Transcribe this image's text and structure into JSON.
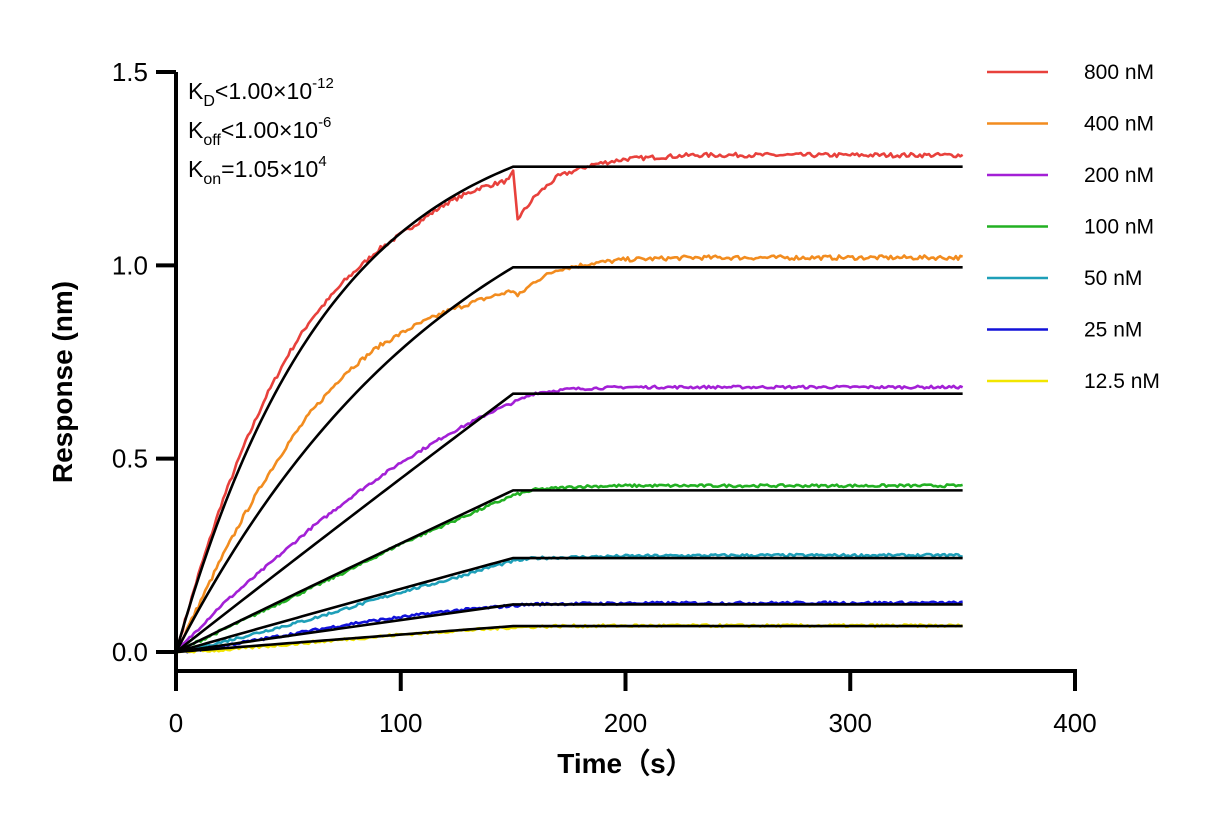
{
  "chart_data": {
    "type": "line",
    "title": "",
    "xlabel": "Time（s）",
    "ylabel": "Response (nm)",
    "xlim": [
      0,
      400
    ],
    "ylim": [
      0,
      1.5
    ],
    "x_ticks": [
      0,
      100,
      200,
      300,
      400
    ],
    "y_ticks": [
      0.0,
      0.5,
      1.0,
      1.5
    ],
    "x_tick_labels": [
      "0",
      "100",
      "200",
      "300",
      "400"
    ],
    "y_tick_labels": [
      "0.0",
      "0.5",
      "1.0",
      "1.5"
    ],
    "grid": false,
    "legend_position": "right",
    "association_end": 150,
    "dissociation_end": 350,
    "annotations": [
      {
        "main": "K",
        "sub": "D",
        "rest": "<1.00×10",
        "sup": "-12"
      },
      {
        "main": "K",
        "sub": "off",
        "rest": "<1.00×10",
        "sup": "-6"
      },
      {
        "main": "K",
        "sub": "on",
        "rest": "=1.05×10",
        "sup": "4"
      }
    ],
    "series": [
      {
        "name": "800 nM",
        "color": "#e8413c",
        "fit_plateau": 1.255,
        "data_plateau": 1.285,
        "dip_at": 152,
        "dip_value": 1.12,
        "points": [
          [
            0,
            0
          ],
          [
            10,
            0.2
          ],
          [
            20,
            0.38
          ],
          [
            30,
            0.53
          ],
          [
            40,
            0.66
          ],
          [
            50,
            0.77
          ],
          [
            60,
            0.86
          ],
          [
            75,
            0.96
          ],
          [
            90,
            1.04
          ],
          [
            105,
            1.1
          ],
          [
            120,
            1.16
          ],
          [
            135,
            1.2
          ],
          [
            148,
            1.22
          ],
          [
            150,
            1.24
          ],
          [
            152,
            1.12
          ],
          [
            160,
            1.18
          ],
          [
            170,
            1.23
          ],
          [
            185,
            1.26
          ],
          [
            200,
            1.275
          ],
          [
            230,
            1.285
          ],
          [
            260,
            1.285
          ],
          [
            300,
            1.285
          ],
          [
            350,
            1.285
          ]
        ]
      },
      {
        "name": "400 nM",
        "color": "#f28c1f",
        "fit_plateau": 0.995,
        "data_plateau": 1.02,
        "dip_at": 152,
        "dip_value": 0.92,
        "points": [
          [
            0,
            0
          ],
          [
            10,
            0.12
          ],
          [
            20,
            0.24
          ],
          [
            30,
            0.35
          ],
          [
            40,
            0.45
          ],
          [
            50,
            0.54
          ],
          [
            60,
            0.62
          ],
          [
            75,
            0.72
          ],
          [
            90,
            0.79
          ],
          [
            105,
            0.84
          ],
          [
            120,
            0.88
          ],
          [
            135,
            0.91
          ],
          [
            150,
            0.935
          ],
          [
            152,
            0.92
          ],
          [
            160,
            0.96
          ],
          [
            170,
            0.99
          ],
          [
            185,
            1.005
          ],
          [
            200,
            1.015
          ],
          [
            230,
            1.02
          ],
          [
            300,
            1.02
          ],
          [
            350,
            1.02
          ]
        ]
      },
      {
        "name": "200 nM",
        "color": "#a320d6",
        "fit_plateau": 0.668,
        "data_plateau": 0.685,
        "points": [
          [
            0,
            0
          ],
          [
            10,
            0.06
          ],
          [
            20,
            0.12
          ],
          [
            30,
            0.17
          ],
          [
            40,
            0.22
          ],
          [
            60,
            0.32
          ],
          [
            80,
            0.41
          ],
          [
            100,
            0.49
          ],
          [
            120,
            0.56
          ],
          [
            140,
            0.62
          ],
          [
            150,
            0.645
          ],
          [
            160,
            0.67
          ],
          [
            175,
            0.68
          ],
          [
            200,
            0.685
          ],
          [
            250,
            0.685
          ],
          [
            300,
            0.685
          ],
          [
            350,
            0.685
          ]
        ]
      },
      {
        "name": "100 nM",
        "color": "#22b022",
        "fit_plateau": 0.418,
        "data_plateau": 0.43,
        "points": [
          [
            0,
            0
          ],
          [
            20,
            0.055
          ],
          [
            40,
            0.11
          ],
          [
            60,
            0.165
          ],
          [
            80,
            0.22
          ],
          [
            100,
            0.28
          ],
          [
            120,
            0.33
          ],
          [
            140,
            0.38
          ],
          [
            150,
            0.405
          ],
          [
            160,
            0.42
          ],
          [
            180,
            0.428
          ],
          [
            200,
            0.43
          ],
          [
            250,
            0.43
          ],
          [
            300,
            0.43
          ],
          [
            350,
            0.43
          ]
        ]
      },
      {
        "name": "50 nM",
        "color": "#1e9fb8",
        "fit_plateau": 0.243,
        "data_plateau": 0.25,
        "points": [
          [
            0,
            0
          ],
          [
            20,
            0.025
          ],
          [
            40,
            0.055
          ],
          [
            60,
            0.085
          ],
          [
            80,
            0.12
          ],
          [
            100,
            0.155
          ],
          [
            120,
            0.185
          ],
          [
            140,
            0.22
          ],
          [
            150,
            0.235
          ],
          [
            160,
            0.243
          ],
          [
            200,
            0.248
          ],
          [
            250,
            0.25
          ],
          [
            300,
            0.25
          ],
          [
            350,
            0.25
          ]
        ]
      },
      {
        "name": "25 nM",
        "color": "#1212d9",
        "fit_plateau": 0.123,
        "data_plateau": 0.127,
        "points": [
          [
            0,
            0
          ],
          [
            10,
            0.005
          ],
          [
            20,
            0.015
          ],
          [
            40,
            0.035
          ],
          [
            60,
            0.055
          ],
          [
            80,
            0.075
          ],
          [
            100,
            0.09
          ],
          [
            120,
            0.105
          ],
          [
            140,
            0.115
          ],
          [
            150,
            0.12
          ],
          [
            160,
            0.124
          ],
          [
            200,
            0.126
          ],
          [
            300,
            0.127
          ],
          [
            350,
            0.127
          ]
        ]
      },
      {
        "name": "12.5 nM",
        "color": "#f2e600",
        "fit_plateau": 0.067,
        "data_plateau": 0.068,
        "points": [
          [
            0,
            0
          ],
          [
            20,
            0.005
          ],
          [
            40,
            0.015
          ],
          [
            60,
            0.025
          ],
          [
            80,
            0.035
          ],
          [
            100,
            0.045
          ],
          [
            120,
            0.053
          ],
          [
            140,
            0.06
          ],
          [
            150,
            0.064
          ],
          [
            170,
            0.067
          ],
          [
            200,
            0.068
          ],
          [
            300,
            0.068
          ],
          [
            350,
            0.068
          ]
        ]
      }
    ]
  }
}
